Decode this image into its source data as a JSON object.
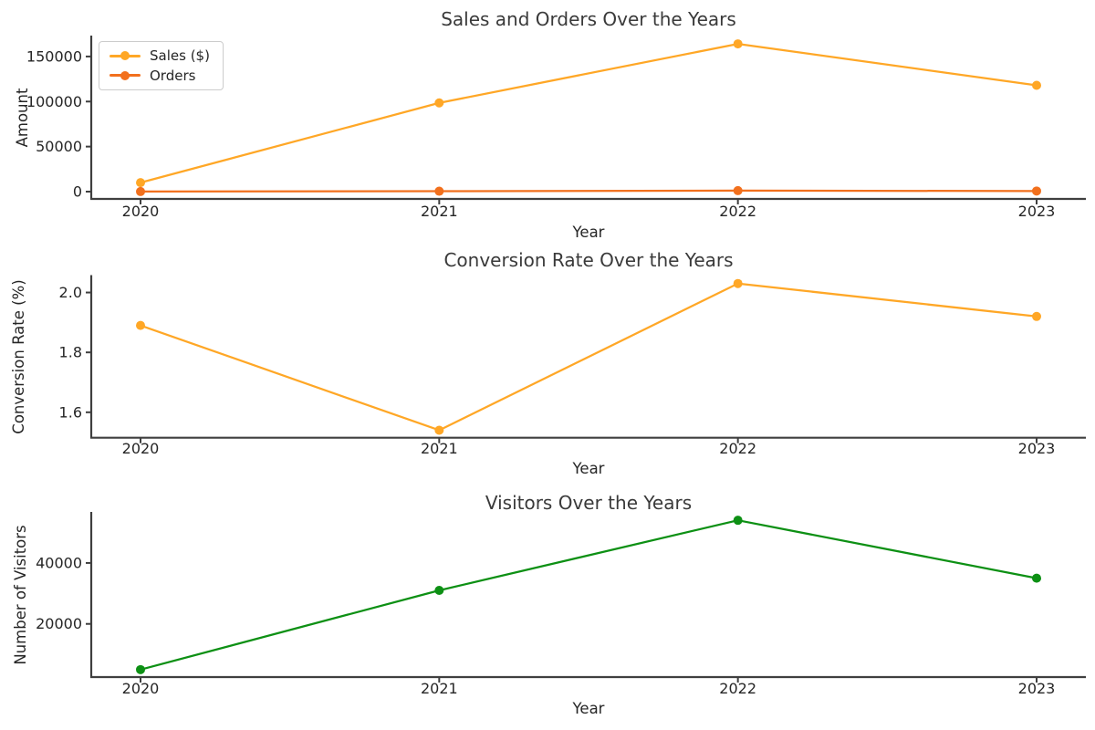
{
  "figure": {
    "background": "#ffffff",
    "title_color": "#3a3a3a",
    "axis_color": "#3f3f3f",
    "tick_text_color": "#262626"
  },
  "chart_data": [
    {
      "type": "line",
      "title": "Sales and Orders Over the Years",
      "xlabel": "Year",
      "ylabel": "Amount",
      "categories": [
        "2020",
        "2021",
        "2022",
        "2023"
      ],
      "series": [
        {
          "name": "Sales ($)",
          "color": "#ffa726",
          "values": [
            10000,
            98500,
            164000,
            118000
          ]
        },
        {
          "name": "Orders",
          "color": "#f2701d",
          "values": [
            100,
            480,
            1100,
            670
          ]
        }
      ],
      "yticks": [
        0,
        50000,
        100000,
        150000
      ],
      "ytick_labels": [
        "0",
        "50000",
        "100000",
        "150000"
      ],
      "ylim": [
        -8100,
        172200
      ],
      "grid": false,
      "legend": {
        "position": "upper-left",
        "entries": [
          "Sales ($)",
          "Orders"
        ]
      }
    },
    {
      "type": "line",
      "title": "Conversion Rate Over the Years",
      "xlabel": "Year",
      "ylabel": "Conversion Rate (%)",
      "categories": [
        "2020",
        "2021",
        "2022",
        "2023"
      ],
      "series": [
        {
          "name": "Conversion Rate",
          "color": "#ffa726",
          "values": [
            1.89,
            1.54,
            2.03,
            1.92
          ]
        }
      ],
      "yticks": [
        1.6,
        1.8,
        2.0
      ],
      "ytick_labels": [
        "1.6",
        "1.8",
        "2.0"
      ],
      "ylim": [
        1.515,
        2.055
      ],
      "grid": false,
      "legend": null
    },
    {
      "type": "line",
      "title": "Visitors Over the Years",
      "xlabel": "Year",
      "ylabel": "Number of Visitors",
      "categories": [
        "2020",
        "2021",
        "2022",
        "2023"
      ],
      "series": [
        {
          "name": "Visitors",
          "color": "#0d9014",
          "values": [
            5000,
            31000,
            54000,
            35000
          ]
        }
      ],
      "yticks": [
        20000,
        40000
      ],
      "ytick_labels": [
        "20000",
        "40000"
      ],
      "ylim": [
        2550,
        56450
      ],
      "grid": false,
      "legend": null
    }
  ]
}
